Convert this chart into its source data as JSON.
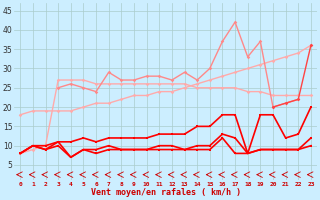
{
  "x": [
    0,
    1,
    2,
    3,
    4,
    5,
    6,
    7,
    8,
    9,
    10,
    11,
    12,
    13,
    14,
    15,
    16,
    17,
    18,
    19,
    20,
    21,
    22,
    23
  ],
  "series": [
    {
      "color": "#ffaaaa",
      "lw": 1.0,
      "marker": "D",
      "ms": 1.8,
      "values": [
        18,
        19,
        19,
        19,
        19,
        20,
        21,
        21,
        22,
        23,
        23,
        24,
        24,
        25,
        26,
        27,
        28,
        29,
        30,
        31,
        32,
        33,
        34,
        36
      ]
    },
    {
      "color": "#ffaaaa",
      "lw": 1.0,
      "marker": "D",
      "ms": 1.8,
      "values": [
        8,
        9,
        10,
        27,
        27,
        27,
        26,
        26,
        26,
        26,
        26,
        26,
        26,
        26,
        25,
        25,
        25,
        25,
        24,
        24,
        23,
        23,
        23,
        23
      ]
    },
    {
      "color": "#ff8888",
      "lw": 1.0,
      "marker": "D",
      "ms": 1.8,
      "values": [
        null,
        null,
        null,
        25,
        26,
        25,
        24,
        29,
        27,
        27,
        28,
        28,
        27,
        29,
        27,
        30,
        37,
        42,
        33,
        37,
        20,
        21,
        22,
        null
      ]
    },
    {
      "color": "#ff4444",
      "lw": 1.0,
      "marker": "D",
      "ms": 1.8,
      "values": [
        null,
        null,
        null,
        null,
        null,
        null,
        null,
        null,
        null,
        null,
        null,
        null,
        null,
        null,
        null,
        null,
        null,
        null,
        null,
        null,
        20,
        21,
        22,
        36
      ]
    },
    {
      "color": "#ff0000",
      "lw": 1.2,
      "marker": "s",
      "ms": 1.8,
      "values": [
        8,
        10,
        10,
        11,
        11,
        12,
        11,
        12,
        12,
        12,
        12,
        13,
        13,
        13,
        15,
        15,
        18,
        18,
        8,
        18,
        18,
        12,
        13,
        20
      ]
    },
    {
      "color": "#ff0000",
      "lw": 1.2,
      "marker": "s",
      "ms": 1.8,
      "values": [
        8,
        10,
        9,
        11,
        7,
        9,
        9,
        10,
        9,
        9,
        9,
        10,
        10,
        9,
        10,
        10,
        13,
        12,
        8,
        9,
        9,
        9,
        9,
        12
      ]
    },
    {
      "color": "#ff0000",
      "lw": 1.2,
      "marker": "s",
      "ms": 1.8,
      "values": [
        8,
        10,
        9,
        10,
        7,
        9,
        8,
        9,
        9,
        9,
        9,
        9,
        9,
        9,
        9,
        9,
        12,
        8,
        8,
        9,
        9,
        9,
        9,
        10
      ]
    }
  ],
  "arrow_series": {
    "color": "#cc0000",
    "y": 2.5,
    "values": [
      0,
      1,
      2,
      3,
      4,
      5,
      6,
      7,
      8,
      9,
      10,
      11,
      12,
      13,
      14,
      15,
      16,
      17,
      18,
      19,
      20,
      21,
      22,
      23
    ]
  },
  "xlabel": "Vent moyen/en rafales ( km/h )",
  "xlim": [
    -0.5,
    23.5
  ],
  "ylim": [
    1,
    47
  ],
  "yticks": [
    5,
    10,
    15,
    20,
    25,
    30,
    35,
    40,
    45
  ],
  "xticks": [
    0,
    1,
    2,
    3,
    4,
    5,
    6,
    7,
    8,
    9,
    10,
    11,
    12,
    13,
    14,
    15,
    16,
    17,
    18,
    19,
    20,
    21,
    22,
    23
  ],
  "bg_color": "#cceeff",
  "grid_color": "#aacccc",
  "label_color": "#cc0000"
}
